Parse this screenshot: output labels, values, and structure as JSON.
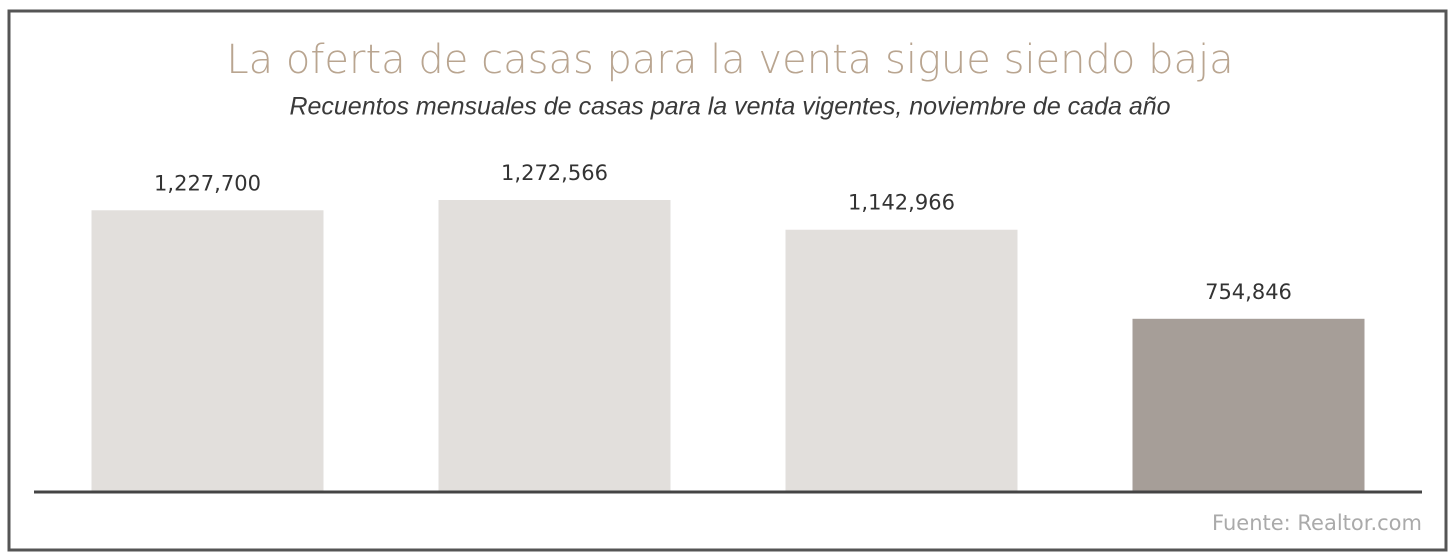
{
  "chart_data": {
    "type": "bar",
    "title": "La oferta de casas para la venta sigue siendo baja",
    "subtitle": "Recuentos mensuales de casas para la venta vigentes, noviembre de cada año",
    "categories": [
      null,
      null,
      null,
      null
    ],
    "values": [
      1227700,
      1272566,
      1142966,
      754846
    ],
    "value_labels": [
      "1,227,700",
      "1,272,566",
      "1,142,966",
      "754,846"
    ],
    "colors": [
      "#e2dfdc",
      "#e2dfdc",
      "#e2dfdc",
      "#a69e98"
    ],
    "source": "Fuente: Realtor.com"
  }
}
